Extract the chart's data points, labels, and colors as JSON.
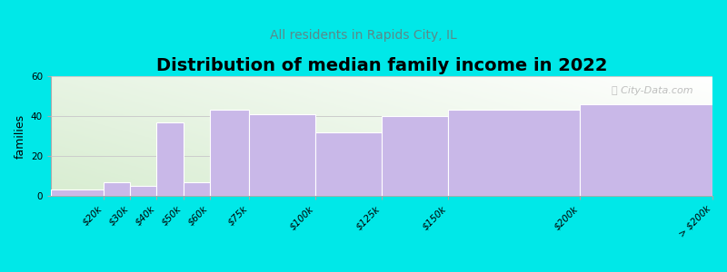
{
  "title": "Distribution of median family income in 2022",
  "subtitle": "All residents in Rapids City, IL",
  "ylabel": "families",
  "categories": [
    "$20k",
    "$30k",
    "$40k",
    "$50k",
    "$60k",
    "$75k",
    "$100k",
    "$125k",
    "$150k",
    "$200k",
    "> $200k"
  ],
  "bin_edges": [
    0,
    20,
    30,
    40,
    50,
    60,
    75,
    100,
    125,
    150,
    200,
    250
  ],
  "values": [
    3,
    7,
    5,
    37,
    7,
    43,
    41,
    32,
    40,
    43,
    46
  ],
  "bar_color": "#c9b8e8",
  "bar_edgecolor": "#ffffff",
  "background_color": "#00e8e8",
  "plot_bg_green": [
    0.847,
    0.929,
    0.82
  ],
  "plot_bg_white": [
    1.0,
    1.0,
    1.0
  ],
  "grid_color": "#cccccc",
  "subtitle_color": "#5a8a8a",
  "title_fontsize": 14,
  "subtitle_fontsize": 10,
  "ylabel_fontsize": 9,
  "tick_fontsize": 7.5,
  "ylim": [
    0,
    60
  ],
  "yticks": [
    0,
    20,
    40,
    60
  ],
  "watermark": "ⓘ City-Data.com"
}
